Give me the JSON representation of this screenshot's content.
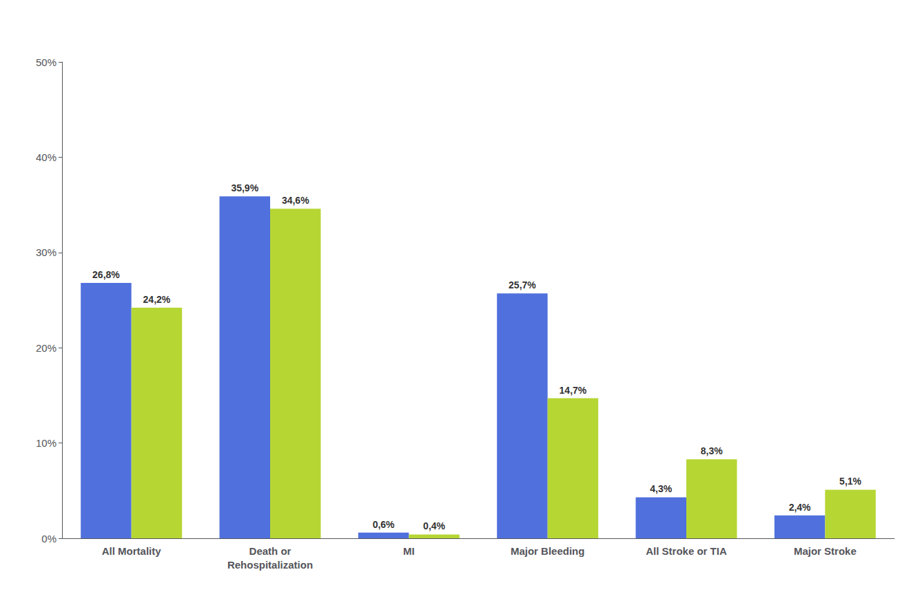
{
  "chart_data": {
    "type": "bar",
    "categories": [
      "All Mortality",
      "Death or\nRehospitalization",
      "MI",
      "Major Bleeding",
      "All Stroke or TIA",
      "Major Stroke"
    ],
    "series": [
      {
        "values": [
          26.8,
          35.9,
          0.6,
          25.7,
          4.3,
          2.4
        ],
        "value_labels": [
          "26,8%",
          "35,9%",
          "0,6%",
          "25,7%",
          "4,3%",
          "2,4%"
        ]
      },
      {
        "values": [
          24.2,
          34.6,
          0.4,
          14.7,
          8.3,
          5.1
        ],
        "value_labels": [
          "24,2%",
          "34,6%",
          "0,4%",
          "14,7%",
          "8,3%",
          "5,1%"
        ]
      }
    ],
    "ylim": [
      0,
      50
    ],
    "yticks": [
      {
        "value": 0,
        "label": "0%"
      },
      {
        "value": 10,
        "label": "10%"
      },
      {
        "value": 20,
        "label": "20%"
      },
      {
        "value": 30,
        "label": "30%"
      },
      {
        "value": 40,
        "label": "40%"
      },
      {
        "value": 50,
        "label": "50%"
      }
    ],
    "data_labels": true,
    "grid": false
  }
}
